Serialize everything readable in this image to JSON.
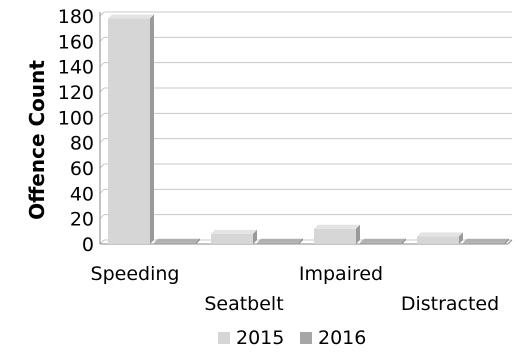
{
  "chart_data": {
    "type": "bar",
    "ylabel": "Offence Count",
    "xlabel": "",
    "ylim": [
      0,
      180
    ],
    "yticks": [
      0,
      20,
      40,
      60,
      80,
      100,
      120,
      140,
      160,
      180
    ],
    "grid": true,
    "legend_position": "bottom",
    "three_d": true,
    "categories": [
      "Speeding",
      "Seatbelt",
      "Impaired",
      "Distracted"
    ],
    "series": [
      {
        "name": "2015",
        "values": [
          178,
          8,
          12,
          6
        ],
        "color": "#d6d6d6"
      },
      {
        "name": "2016",
        "values": [
          1,
          1,
          1,
          1
        ],
        "color": "#a6a6a6"
      }
    ]
  }
}
